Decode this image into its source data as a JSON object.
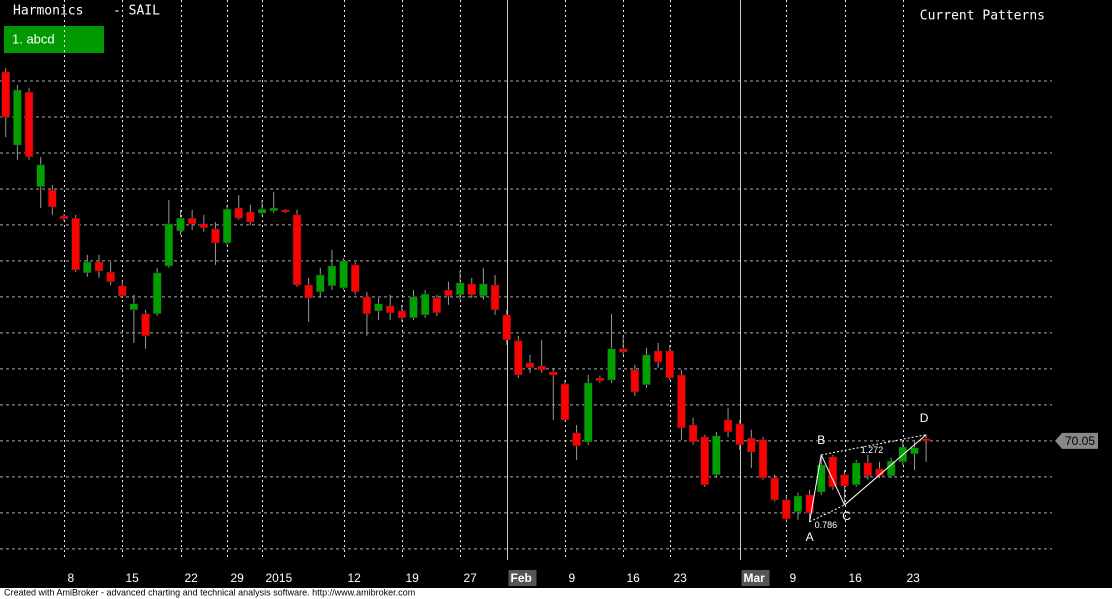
{
  "chart_data": {
    "type": "candlestick",
    "title": "Harmonics",
    "subtitle": "- SAIL",
    "panel_title": "Current Patterns",
    "footer": "Created with AmiBroker - advanced charting and technical analysis software. http://www.amibroker.com",
    "categories": [
      null,
      null,
      null,
      null,
      null,
      "8",
      null,
      null,
      null,
      null,
      "15",
      null,
      null,
      null,
      null,
      "22",
      null,
      null,
      null,
      "29",
      null,
      null,
      "2015",
      null,
      null,
      null,
      null,
      null,
      null,
      "12",
      null,
      null,
      null,
      null,
      "19",
      null,
      null,
      null,
      null,
      "27",
      null,
      null,
      null,
      "Feb",
      null,
      null,
      null,
      null,
      "9",
      null,
      null,
      null,
      null,
      "16",
      null,
      null,
      null,
      "23",
      null,
      null,
      null,
      null,
      null,
      "Mar",
      null,
      null,
      null,
      "9",
      null,
      null,
      null,
      null,
      "16",
      null,
      null,
      null,
      null,
      "23",
      null,
      null
    ],
    "open": [
      80.3,
      78.27,
      79.74,
      77.11,
      77.02,
      76.3,
      76.24,
      74.72,
      75.02,
      74.74,
      74.36,
      73.69,
      73.58,
      73.58,
      74.91,
      75.88,
      76.24,
      76.08,
      75.94,
      75.55,
      76.52,
      76.41,
      76.38,
      76.44,
      76.47,
      76.33,
      74.38,
      74.19,
      74.36,
      74.3,
      74.94,
      74.05,
      73.66,
      73.8,
      73.66,
      73.47,
      73.55,
      74.02,
      74.24,
      74.11,
      74.41,
      74.08,
      74.38,
      73.55,
      72.83,
      72.22,
      72.13,
      71.97,
      71.63,
      70.27,
      70.02,
      71.8,
      71.74,
      72.61,
      72.02,
      71.61,
      72.55,
      72.55,
      71.88,
      70.49,
      70.16,
      69.11,
      70.63,
      70.52,
      70.13,
      70.08,
      69.02,
      68.41,
      68.08,
      68.55,
      68.63,
      69.61,
      69.11,
      68.83,
      69.44,
      69.27,
      69.08,
      69.47,
      69.69,
      70.11
    ],
    "high": [
      80.41,
      79.94,
      79.86,
      77.94,
      77.16,
      76.36,
      76.33,
      75.22,
      75.22,
      75.02,
      74.52,
      74.11,
      73.69,
      74.86,
      76.74,
      76.47,
      76.47,
      76.33,
      76.13,
      76.61,
      76.88,
      76.61,
      76.74,
      76.97,
      76.49,
      76.47,
      74.58,
      74.86,
      75.36,
      75.13,
      75.02,
      74.19,
      74.02,
      74.11,
      73.83,
      74.24,
      74.24,
      74.11,
      74.47,
      74.8,
      74.58,
      74.86,
      74.66,
      73.69,
      72.97,
      72.44,
      72.86,
      72.08,
      71.74,
      70.49,
      71.88,
      71.86,
      73.58,
      72.99,
      72.16,
      72.63,
      72.77,
      72.72,
      72.02,
      70.69,
      70.22,
      70.3,
      70.97,
      70.63,
      70.36,
      70.16,
      69.11,
      68.52,
      68.61,
      68.69,
      69.66,
      69.66,
      69.24,
      69.52,
      69.66,
      69.47,
      69.58,
      70.08,
      70.08,
      70.22
    ],
    "low": [
      78.49,
      77.86,
      77.86,
      76.52,
      76.33,
      76.16,
      74.74,
      74.61,
      74.58,
      74.38,
      74.02,
      72.77,
      72.61,
      73.52,
      74.86,
      75.77,
      75.91,
      75.86,
      74.94,
      75.47,
      76.19,
      76.05,
      76.33,
      76.38,
      76.38,
      74.33,
      73.36,
      74.02,
      74.24,
      74.24,
      74.11,
      72.97,
      73.41,
      73.41,
      73.36,
      73.41,
      73.47,
      73.52,
      73.83,
      73.97,
      74.02,
      73.97,
      73.55,
      72.72,
      71.8,
      71.94,
      71.94,
      70.63,
      70.58,
      69.52,
      69.94,
      71.66,
      71.66,
      72.44,
      71.3,
      71.52,
      72.08,
      71.74,
      70.08,
      69.94,
      68.77,
      69.02,
      70.16,
      69.8,
      69.3,
      68.97,
      68.36,
      67.8,
      67.86,
      67.8,
      68.55,
      68.69,
      68.27,
      68.77,
      68.97,
      69.02,
      69.02,
      69.38,
      69.24,
      69.47
    ],
    "close": [
      79.05,
      79.8,
      77.94,
      77.72,
      76.55,
      76.22,
      74.8,
      75.02,
      74.77,
      74.47,
      74.08,
      73.86,
      72.97,
      74.72,
      76.08,
      76.24,
      76.08,
      75.97,
      75.55,
      76.49,
      76.24,
      76.13,
      76.49,
      76.52,
      76.41,
      74.38,
      74.02,
      74.66,
      74.91,
      75.05,
      74.19,
      73.58,
      73.86,
      73.61,
      73.47,
      74.05,
      74.13,
      73.61,
      74.08,
      74.44,
      74.11,
      74.41,
      73.69,
      72.86,
      71.88,
      72.08,
      72.02,
      71.88,
      70.63,
      69.91,
      71.66,
      71.72,
      72.61,
      72.52,
      71.41,
      72.44,
      72.24,
      71.8,
      70.41,
      70.02,
      68.83,
      70.19,
      70.3,
      69.94,
      69.74,
      69.02,
      68.41,
      67.88,
      68.52,
      68.05,
      69.38,
      68.77,
      68.8,
      69.44,
      69.08,
      69.08,
      69.49,
      69.88,
      69.86,
      70.05
    ],
    "up_color": "#00a000",
    "down_color": "#ff0000",
    "ylim": [
      66.74,
      82.3
    ],
    "ygrid": [
      67.05,
      68.05,
      69.05,
      70.05,
      71.05,
      72.05,
      73.05,
      74.05,
      75.05,
      76.05,
      77.05,
      78.05,
      79.05,
      80.05
    ],
    "pattern": {
      "name": "1. abcd",
      "color": "#ffffff",
      "points": [
        {
          "label": "A",
          "index": 69,
          "value": 67.8
        },
        {
          "label": "B",
          "index": 70,
          "value": 69.66
        },
        {
          "label": "C",
          "index": 72,
          "value": 68.27
        },
        {
          "label": "D",
          "index": 79,
          "value": 70.22
        }
      ],
      "ratios": [
        0.786,
        1.272
      ]
    }
  }
}
